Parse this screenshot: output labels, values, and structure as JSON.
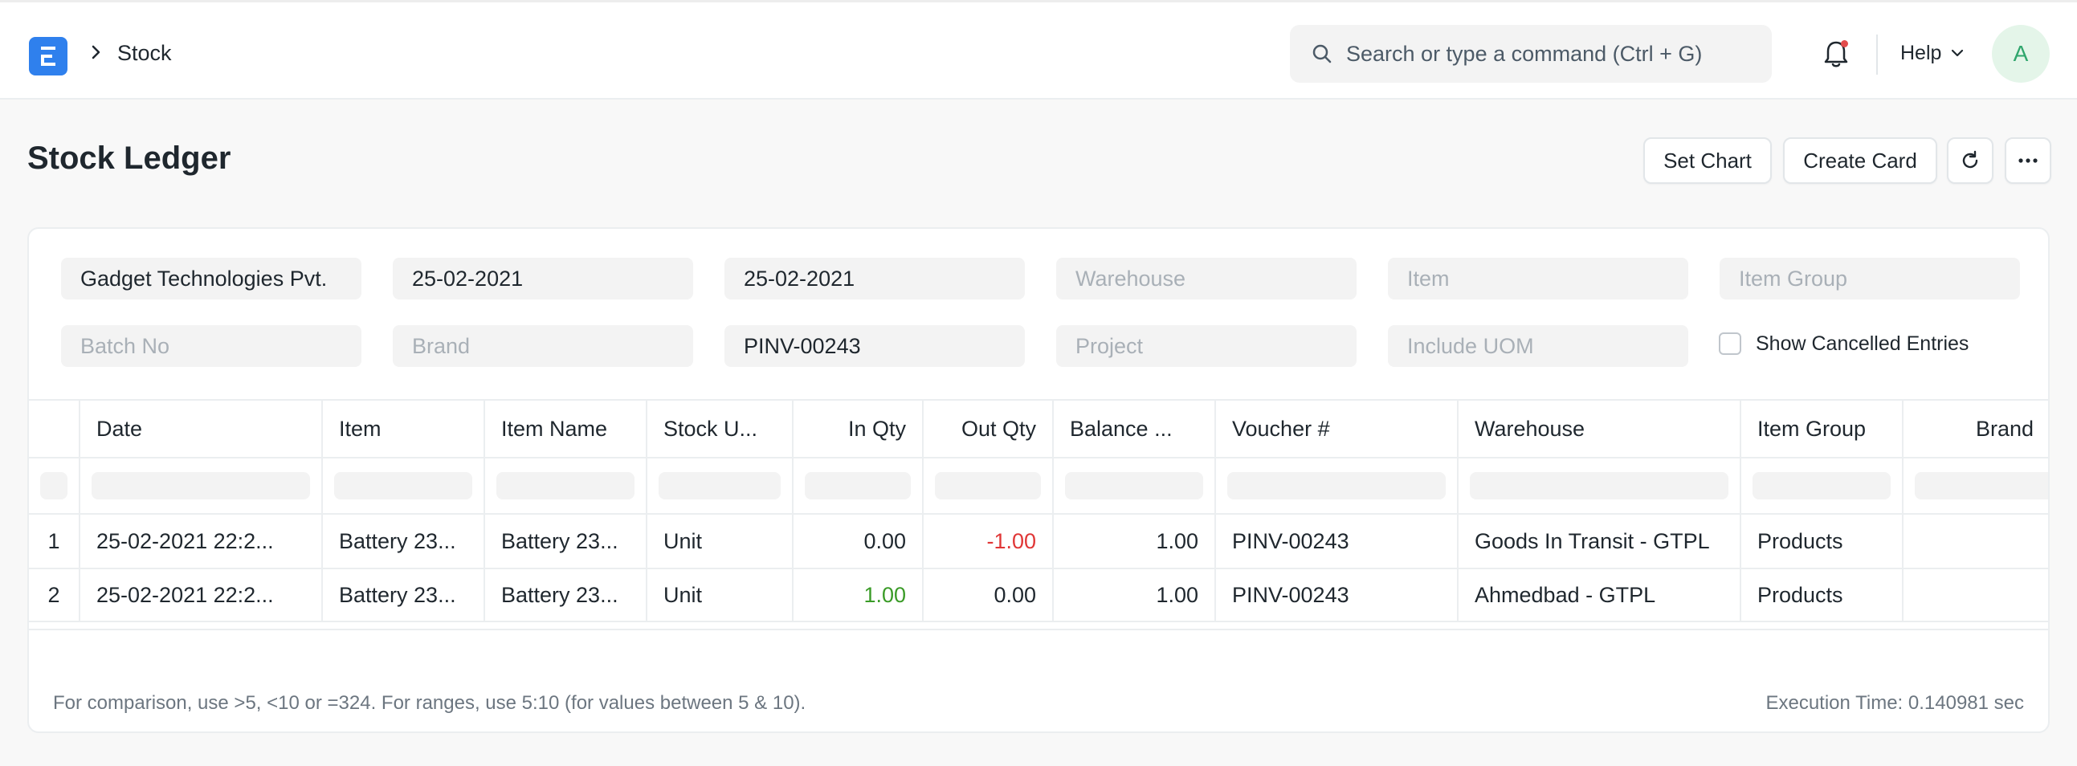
{
  "navbar": {
    "breadcrumb": "Stock",
    "search_placeholder": "Search or type a command (Ctrl + G)",
    "help_label": "Help",
    "avatar_initial": "A",
    "logo_letter": "E"
  },
  "page": {
    "title": "Stock Ledger",
    "buttons": {
      "set_chart": "Set Chart",
      "create_card": "Create Card"
    }
  },
  "filters": {
    "company": "Gadget Technologies Pvt.",
    "from_date": "25-02-2021",
    "to_date": "25-02-2021",
    "warehouse": "Warehouse",
    "item": "Item",
    "item_group": "Item Group",
    "batch_no": "Batch No",
    "brand": "Brand",
    "voucher_no": "PINV-00243",
    "project": "Project",
    "include_uom": "Include UOM",
    "show_cancelled": "Show Cancelled Entries"
  },
  "table": {
    "columns": [
      "Date",
      "Item",
      "Item Name",
      "Stock U...",
      "In Qty",
      "Out Qty",
      "Balance ...",
      "Voucher #",
      "Warehouse",
      "Item Group",
      "Brand"
    ],
    "rows": [
      {
        "idx": "1",
        "date": "25-02-2021 22:2...",
        "item": "Battery 23...",
        "item_name": "Battery 23...",
        "uom": "Unit",
        "in_qty": "0.00",
        "out_qty": "-1.00",
        "balance": "1.00",
        "voucher": "PINV-00243",
        "warehouse": "Goods In Transit - GTPL",
        "item_group": "Products",
        "brand": ""
      },
      {
        "idx": "2",
        "date": "25-02-2021 22:2...",
        "item": "Battery 23...",
        "item_name": "Battery 23...",
        "uom": "Unit",
        "in_qty": "1.00",
        "out_qty": "0.00",
        "balance": "1.00",
        "voucher": "PINV-00243",
        "warehouse": "Ahmedbad - GTPL",
        "item_group": "Products",
        "brand": ""
      }
    ]
  },
  "footer": {
    "note": "For comparison, use >5, <10 or =324. For ranges, use 5:10 (for values between 5 & 10).",
    "execution_time": "Execution Time: 0.140981 sec"
  },
  "colors": {
    "accent": "#2f80ed",
    "negative": "#e03636",
    "positive": "#3a9b27",
    "avatar_bg": "#e4f5e9",
    "avatar_fg": "#30a66d"
  }
}
